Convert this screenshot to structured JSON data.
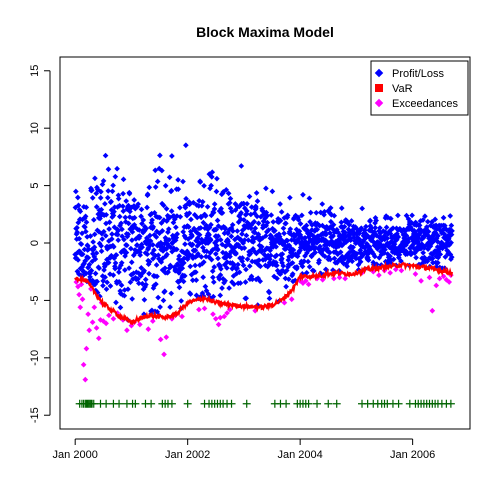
{
  "chart_data": {
    "type": "scatter",
    "title": "Block Maxima Model",
    "xlabel": "",
    "ylabel": "",
    "xlim": [
      2000.0,
      2006.75
    ],
    "ylim": [
      -15,
      15
    ],
    "x_ticks": [
      {
        "value": 2000.0,
        "label": "Jan 2000"
      },
      {
        "value": 2002.0,
        "label": "Jan 2002"
      },
      {
        "value": 2004.0,
        "label": "Jan 2004"
      },
      {
        "value": 2006.0,
        "label": "Jan 2006"
      }
    ],
    "y_ticks": [
      -15,
      -10,
      -5,
      0,
      5,
      10,
      15
    ],
    "legend_position": "top-right",
    "colors": {
      "profit_loss": "#0000ff",
      "var": "#ff0000",
      "exceedances": "#ff00ff",
      "markers": "#006400"
    },
    "series": [
      {
        "name": "Profit/Loss",
        "kind": "points",
        "x_range": [
          2000.0,
          2006.7
        ],
        "n": 1700,
        "volatility_profile": {
          "x": [
            2000.0,
            2000.5,
            2001.0,
            2001.5,
            2002.0,
            2002.5,
            2003.0,
            2003.5,
            2004.0,
            2004.5,
            2005.0,
            2005.5,
            2006.0,
            2006.7
          ],
          "std": [
            3.8,
            3.6,
            3.4,
            3.3,
            3.1,
            3.0,
            2.6,
            2.2,
            1.8,
            1.5,
            1.3,
            1.2,
            1.2,
            1.3
          ]
        }
      },
      {
        "name": "VaR",
        "kind": "line",
        "x": [
          2000.0,
          2000.2,
          2000.5,
          2000.8,
          2001.0,
          2001.3,
          2001.6,
          2001.8,
          2002.0,
          2002.3,
          2002.5,
          2002.8,
          2003.0,
          2003.3,
          2003.5,
          2003.7,
          2003.9,
          2004.0,
          2004.3,
          2004.6,
          2004.9,
          2005.2,
          2005.5,
          2005.8,
          2006.0,
          2006.3,
          2006.7
        ],
        "y": [
          -3.0,
          -3.3,
          -5.3,
          -6.4,
          -6.9,
          -6.3,
          -6.5,
          -6.2,
          -5.2,
          -4.8,
          -5.2,
          -5.4,
          -5.5,
          -5.6,
          -5.4,
          -4.9,
          -3.8,
          -2.9,
          -2.9,
          -2.6,
          -2.7,
          -2.3,
          -2.1,
          -1.9,
          -2.0,
          -2.2,
          -2.6
        ]
      },
      {
        "name": "Exceedances",
        "kind": "points",
        "points": [
          {
            "x": 2000.02,
            "y": -3.4
          },
          {
            "x": 2000.05,
            "y": -3.8
          },
          {
            "x": 2000.07,
            "y": -4.5
          },
          {
            "x": 2000.09,
            "y": -5.6
          },
          {
            "x": 2000.11,
            "y": -3.6
          },
          {
            "x": 2000.13,
            "y": -4.9
          },
          {
            "x": 2000.15,
            "y": -10.6
          },
          {
            "x": 2000.18,
            "y": -11.9
          },
          {
            "x": 2000.2,
            "y": -9.2
          },
          {
            "x": 2000.23,
            "y": -6.2
          },
          {
            "x": 2000.25,
            "y": -7.6
          },
          {
            "x": 2000.28,
            "y": -4.0
          },
          {
            "x": 2000.31,
            "y": -6.9
          },
          {
            "x": 2000.34,
            "y": -5.6
          },
          {
            "x": 2000.38,
            "y": -7.4
          },
          {
            "x": 2000.42,
            "y": -8.3
          },
          {
            "x": 2000.45,
            "y": -6.7
          },
          {
            "x": 2000.47,
            "y": -5.2
          },
          {
            "x": 2000.5,
            "y": -6.8
          },
          {
            "x": 2000.55,
            "y": -7.0
          },
          {
            "x": 2000.6,
            "y": -6.3
          },
          {
            "x": 2000.68,
            "y": -6.6
          },
          {
            "x": 2000.75,
            "y": -6.1
          },
          {
            "x": 2000.85,
            "y": -6.7
          },
          {
            "x": 2000.92,
            "y": -7.6
          },
          {
            "x": 2001.0,
            "y": -7.2
          },
          {
            "x": 2001.05,
            "y": -6.9
          },
          {
            "x": 2001.15,
            "y": -7.1
          },
          {
            "x": 2001.3,
            "y": -7.5
          },
          {
            "x": 2001.38,
            "y": -6.8
          },
          {
            "x": 2001.52,
            "y": -8.4
          },
          {
            "x": 2001.58,
            "y": -9.7
          },
          {
            "x": 2001.62,
            "y": -8.2
          },
          {
            "x": 2001.72,
            "y": -6.6
          },
          {
            "x": 2001.78,
            "y": -6.3
          },
          {
            "x": 2001.9,
            "y": -6.4
          },
          {
            "x": 2002.2,
            "y": -5.8
          },
          {
            "x": 2002.3,
            "y": -5.7
          },
          {
            "x": 2002.45,
            "y": -6.2
          },
          {
            "x": 2002.5,
            "y": -6.6
          },
          {
            "x": 2002.55,
            "y": -7.1
          },
          {
            "x": 2002.58,
            "y": -6.5
          },
          {
            "x": 2002.65,
            "y": -6.4
          },
          {
            "x": 2002.7,
            "y": -6.1
          },
          {
            "x": 2002.75,
            "y": -5.8
          },
          {
            "x": 2003.2,
            "y": -5.9
          },
          {
            "x": 2003.72,
            "y": -5.2
          },
          {
            "x": 2003.85,
            "y": -4.9
          },
          {
            "x": 2004.0,
            "y": -3.3
          },
          {
            "x": 2004.05,
            "y": -3.5
          },
          {
            "x": 2004.1,
            "y": -3.3
          },
          {
            "x": 2004.15,
            "y": -3.6
          },
          {
            "x": 2004.3,
            "y": -3.1
          },
          {
            "x": 2004.4,
            "y": -3.2
          },
          {
            "x": 2004.6,
            "y": -3.1
          },
          {
            "x": 2004.7,
            "y": -3.0
          },
          {
            "x": 2004.8,
            "y": -3.1
          },
          {
            "x": 2005.1,
            "y": -2.6
          },
          {
            "x": 2005.3,
            "y": -2.5
          },
          {
            "x": 2005.4,
            "y": -2.8
          },
          {
            "x": 2005.5,
            "y": -2.4
          },
          {
            "x": 2005.6,
            "y": -2.6
          },
          {
            "x": 2005.7,
            "y": -2.3
          },
          {
            "x": 2005.8,
            "y": -2.4
          },
          {
            "x": 2006.05,
            "y": -2.7
          },
          {
            "x": 2006.15,
            "y": -3.3
          },
          {
            "x": 2006.3,
            "y": -3.0
          },
          {
            "x": 2006.35,
            "y": -5.9
          },
          {
            "x": 2006.42,
            "y": -3.7
          },
          {
            "x": 2006.48,
            "y": -3.1
          },
          {
            "x": 2006.55,
            "y": -2.9
          },
          {
            "x": 2006.6,
            "y": -3.2
          },
          {
            "x": 2006.65,
            "y": -3.4
          },
          {
            "x": 2006.68,
            "y": -2.8
          }
        ]
      }
    ],
    "exceedance_markers": {
      "y": -14,
      "x": [
        2000.08,
        2000.12,
        2000.15,
        2000.18,
        2000.2,
        2000.22,
        2000.24,
        2000.26,
        2000.28,
        2000.3,
        2000.33,
        2000.45,
        2000.55,
        2000.68,
        2000.78,
        2000.92,
        2001.02,
        2001.07,
        2001.25,
        2001.35,
        2001.55,
        2001.6,
        2001.65,
        2001.72,
        2002.0,
        2002.3,
        2002.38,
        2002.43,
        2002.48,
        2002.53,
        2002.58,
        2002.63,
        2002.7,
        2002.78,
        2003.05,
        2003.55,
        2003.65,
        2003.75,
        2003.95,
        2004.0,
        2004.05,
        2004.1,
        2004.15,
        2004.3,
        2004.5,
        2004.65,
        2005.1,
        2005.2,
        2005.3,
        2005.38,
        2005.45,
        2005.5,
        2005.55,
        2005.65,
        2005.75,
        2005.95,
        2006.05,
        2006.1,
        2006.15,
        2006.2,
        2006.25,
        2006.3,
        2006.35,
        2006.4,
        2006.45,
        2006.52,
        2006.6,
        2006.68
      ]
    }
  }
}
